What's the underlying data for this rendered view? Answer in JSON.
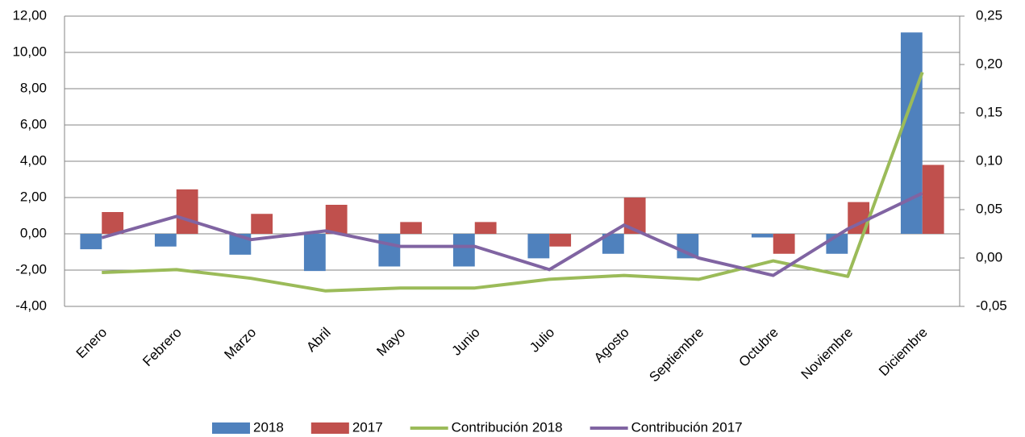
{
  "chart_data": {
    "type": "bar_line",
    "categories": [
      "Enero",
      "Febrero",
      "Marzo",
      "Abril",
      "Mayo",
      "Junio",
      "Julio",
      "Agosto",
      "Septiembre",
      "Octubre",
      "Noviembre",
      "Diciembre"
    ],
    "series": [
      {
        "name": "2018",
        "color": "#4f81bd",
        "type": "bar",
        "values": [
          -0.85,
          -0.7,
          -1.15,
          -2.05,
          -1.8,
          -1.8,
          -1.35,
          -1.1,
          -1.35,
          -0.2,
          -1.1,
          11.1
        ]
      },
      {
        "name": "2017",
        "color": "#c0504d",
        "type": "bar",
        "values": [
          1.2,
          2.45,
          1.1,
          1.6,
          0.65,
          0.65,
          -0.7,
          2.0,
          0,
          -1.1,
          1.75,
          3.8
        ]
      },
      {
        "name": "Contribución 2018",
        "color": "#9bbb59",
        "type": "line",
        "axis": "y2",
        "values": [
          -0.015,
          -0.012,
          -0.021,
          -0.034,
          -0.031,
          -0.031,
          -0.022,
          -0.018,
          -0.022,
          -0.003,
          -0.019,
          0.192
        ]
      },
      {
        "name": "Contribución 2017",
        "color": "#8064a2",
        "type": "line",
        "axis": "y2",
        "values": [
          0.021,
          0.043,
          0.019,
          0.028,
          0.012,
          0.012,
          -0.012,
          0.034,
          0.0,
          -0.018,
          0.03,
          0.067
        ]
      }
    ],
    "ylim": [
      -4,
      12
    ],
    "yticks": [
      {
        "value": -4,
        "label": "-4,00"
      },
      {
        "value": -2,
        "label": "-2,00"
      },
      {
        "value": 0,
        "label": "0,00"
      },
      {
        "value": 2,
        "label": "2,00"
      },
      {
        "value": 4,
        "label": "4,00"
      },
      {
        "value": 6,
        "label": "6,00"
      },
      {
        "value": 8,
        "label": "8,00"
      },
      {
        "value": 10,
        "label": "10,00"
      },
      {
        "value": 12,
        "label": "12,00"
      }
    ],
    "y2lim": [
      -0.05,
      0.25
    ],
    "y2ticks": [
      {
        "value": -0.05,
        "label": "-0,05"
      },
      {
        "value": 0,
        "label": "0,00"
      },
      {
        "value": 0.05,
        "label": "0,05"
      },
      {
        "value": 0.1,
        "label": "0,10"
      },
      {
        "value": 0.15,
        "label": "0,15"
      },
      {
        "value": 0.2,
        "label": "0,20"
      },
      {
        "value": 0.25,
        "label": "0,25"
      }
    ],
    "grid": true,
    "legend": "bottom"
  }
}
